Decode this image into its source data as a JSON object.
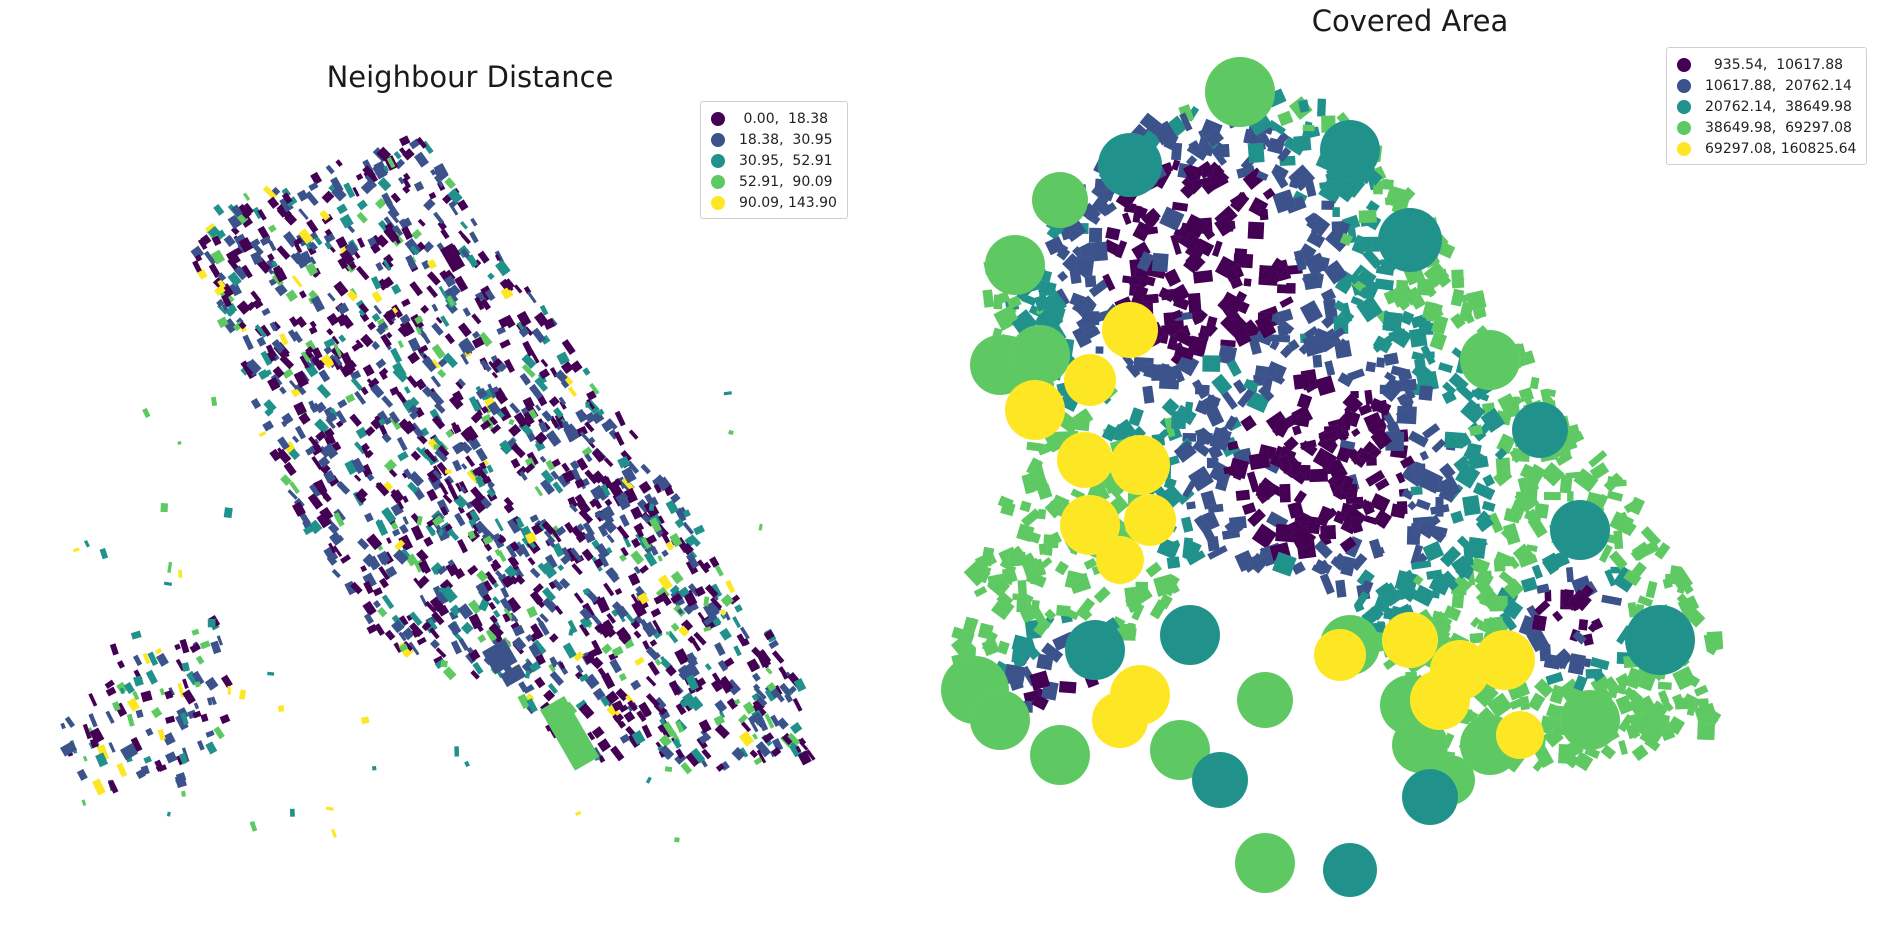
{
  "maps": [
    {
      "title": "Neighbour Distance",
      "legend": [
        {
          "label": " 0.00,  18.38",
          "color": "#440154"
        },
        {
          "label": "18.38,  30.95",
          "color": "#3b528b"
        },
        {
          "label": "30.95,  52.91",
          "color": "#21918c"
        },
        {
          "label": "52.91,  90.09",
          "color": "#5ec962"
        },
        {
          "label": "90.09, 143.90",
          "color": "#fde725"
        }
      ]
    },
    {
      "title": "Covered Area",
      "legend": [
        {
          "label": "  935.54,  10617.88",
          "color": "#440154"
        },
        {
          "label": "10617.88,  20762.14",
          "color": "#3b528b"
        },
        {
          "label": "20762.14,  38649.98",
          "color": "#21918c"
        },
        {
          "label": "38649.98,  69297.08",
          "color": "#5ec962"
        },
        {
          "label": "69297.08, 160825.64",
          "color": "#fde725"
        }
      ]
    }
  ]
}
